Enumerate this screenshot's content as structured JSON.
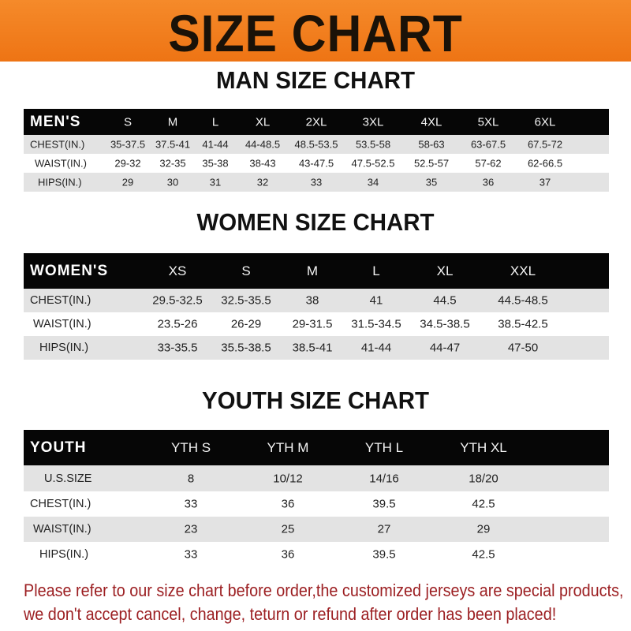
{
  "banner": {
    "title": "SIZE CHART",
    "color": "#f07a1a"
  },
  "tables": [
    {
      "title": "MAN SIZE CHART",
      "header_label": "MEN'S",
      "columns": [
        "S",
        "M",
        "L",
        "XL",
        "2XL",
        "3XL",
        "4XL",
        "5XL",
        "6XL"
      ],
      "rows": [
        {
          "label": "CHEST(IN.)",
          "values": [
            "35-37.5",
            "37.5-41",
            "41-44",
            "44-48.5",
            "48.5-53.5",
            "53.5-58",
            "58-63",
            "63-67.5",
            "67.5-72"
          ]
        },
        {
          "label": "WAIST(IN.)",
          "values": [
            "29-32",
            "32-35",
            "35-38",
            "38-43",
            "43-47.5",
            "47.5-52.5",
            "52.5-57",
            "57-62",
            "62-66.5"
          ]
        },
        {
          "label": "HIPS(IN.)",
          "values": [
            "29",
            "30",
            "31",
            "32",
            "33",
            "34",
            "35",
            "36",
            "37"
          ]
        }
      ]
    },
    {
      "title": "WOMEN SIZE CHART",
      "header_label": "WOMEN'S",
      "columns": [
        "XS",
        "S",
        "M",
        "L",
        "XL",
        "XXL"
      ],
      "rows": [
        {
          "label": "CHEST(IN.)",
          "values": [
            "29.5-32.5",
            "32.5-35.5",
            "38",
            "41",
            "44.5",
            "44.5-48.5"
          ]
        },
        {
          "label": "WAIST(IN.)",
          "values": [
            "23.5-26",
            "26-29",
            "29-31.5",
            "31.5-34.5",
            "34.5-38.5",
            "38.5-42.5"
          ]
        },
        {
          "label": "HIPS(IN.)",
          "values": [
            "33-35.5",
            "35.5-38.5",
            "38.5-41",
            "41-44",
            "44-47",
            "47-50"
          ]
        }
      ]
    },
    {
      "title": "YOUTH SIZE CHART",
      "header_label": "YOUTH",
      "columns": [
        "YTH S",
        "YTH M",
        "YTH L",
        "YTH XL"
      ],
      "rows": [
        {
          "label": "U.S.SIZE",
          "values": [
            "8",
            "10/12",
            "14/16",
            "18/20"
          ]
        },
        {
          "label": "CHEST(IN.)",
          "values": [
            "33",
            "36",
            "39.5",
            "42.5"
          ]
        },
        {
          "label": "WAIST(IN.)",
          "values": [
            "23",
            "25",
            "27",
            "29"
          ]
        },
        {
          "label": "HIPS(IN.)",
          "values": [
            "33",
            "36",
            "39.5",
            "42.5"
          ]
        }
      ]
    }
  ],
  "notice": {
    "line1": "Please refer to our size chart before order,the customized jerseys are special products,",
    "line2": "we don't accept cancel, change, teturn or refund after order has been placed!",
    "color": "#9c1f22"
  }
}
